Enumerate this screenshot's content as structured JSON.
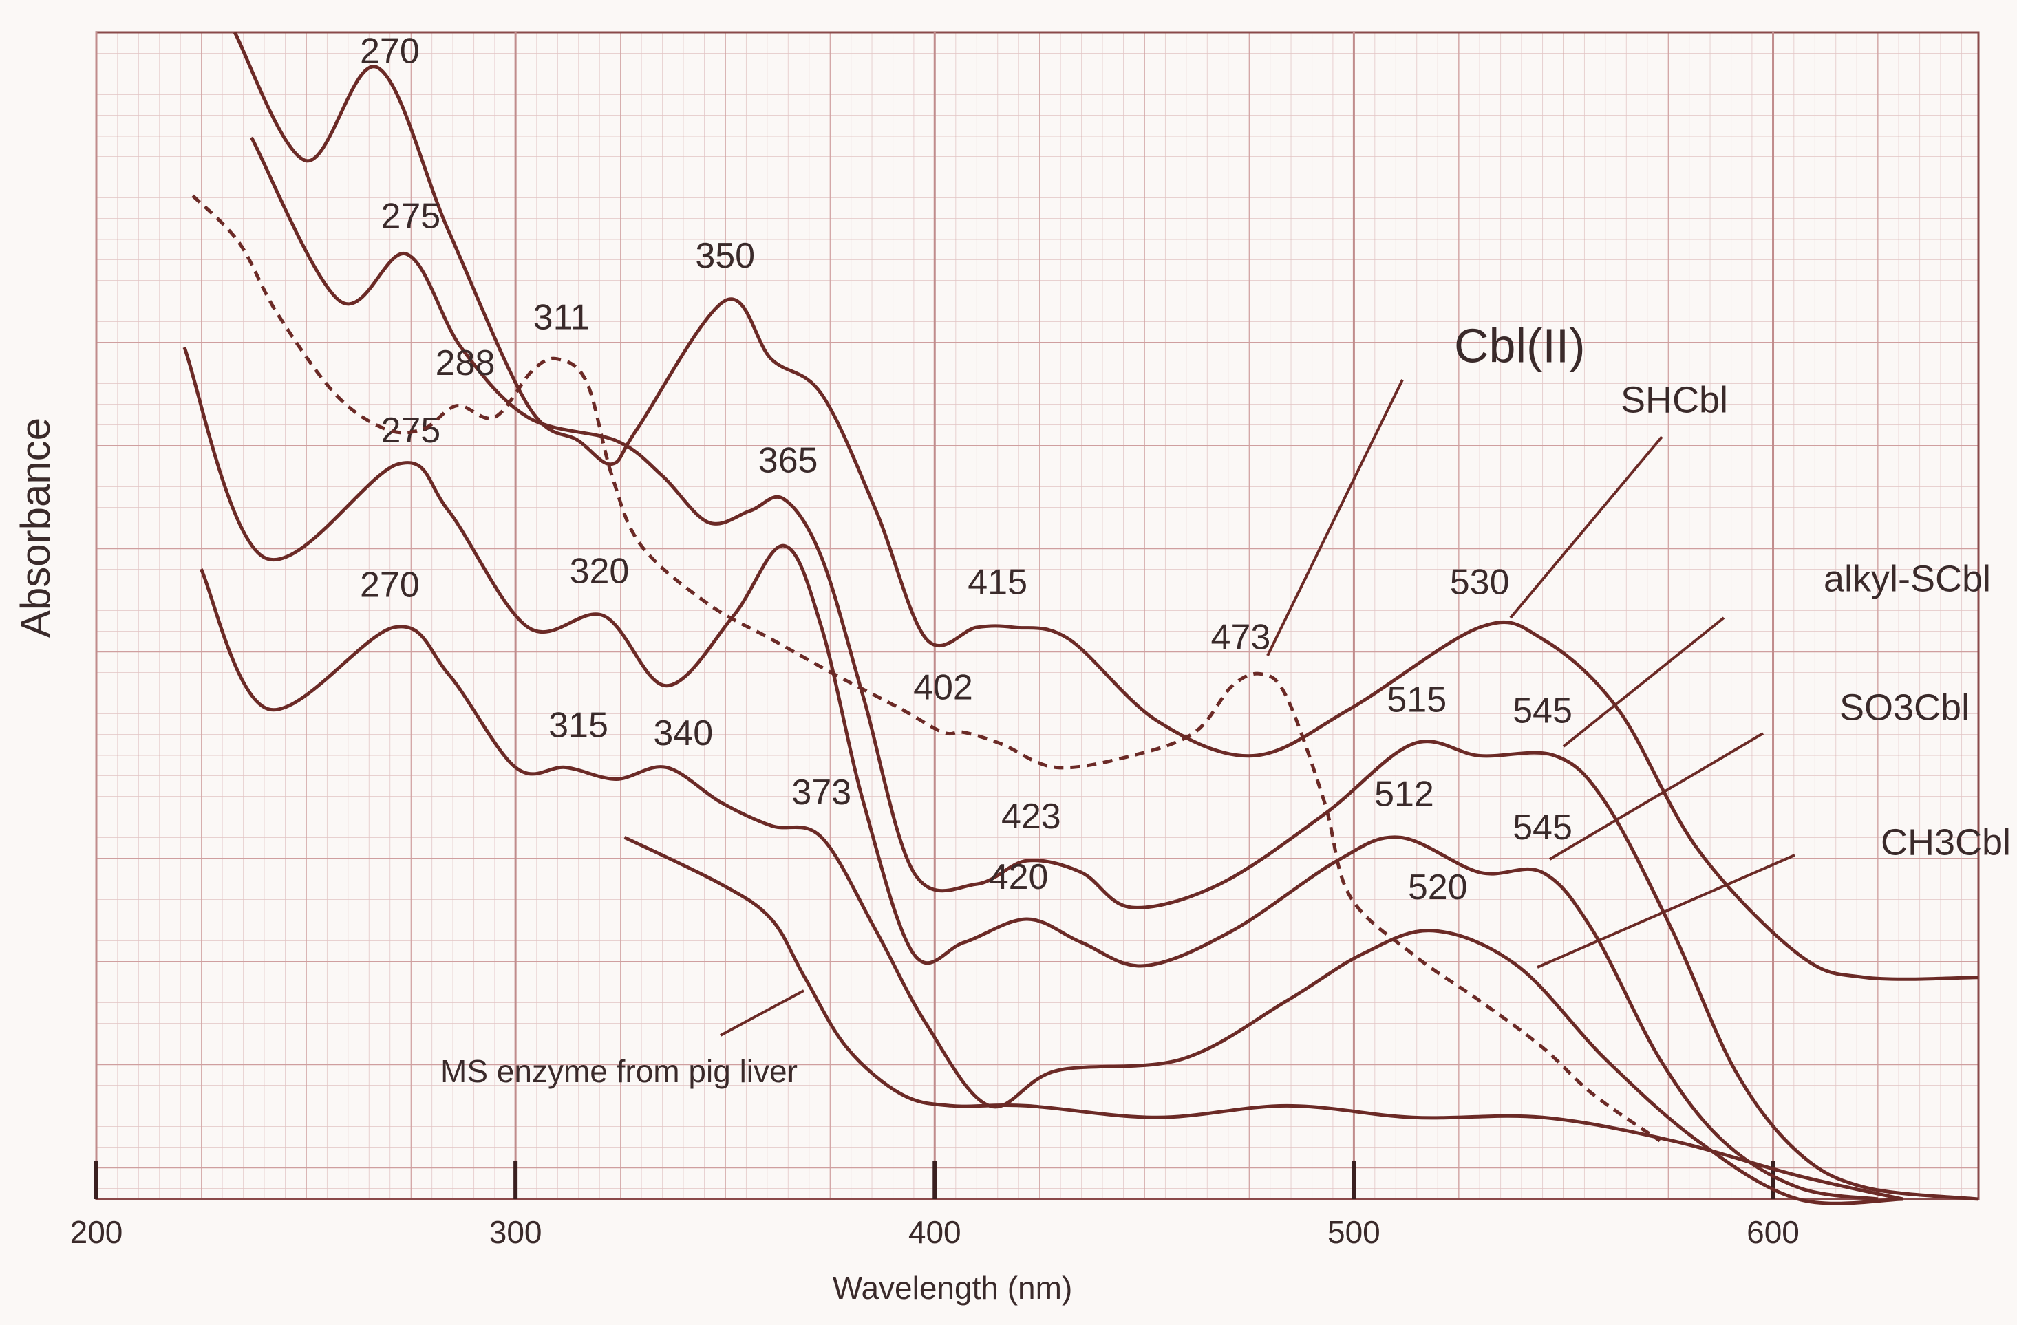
{
  "chart_data": {
    "type": "line",
    "x_label": "Wavelength (nm)",
    "y_label": "Absorbance",
    "xlim": [
      200,
      649
    ],
    "ylim": [
      0,
      1
    ],
    "xticks": [
      200,
      300,
      400,
      500,
      600
    ],
    "grid": true,
    "series": [
      {
        "name": "SHCbl",
        "color": "#6b2a26",
        "style": "solid",
        "peaks": [
          270,
          350,
          415,
          530
        ],
        "x": [
          233,
          250,
          267,
          284,
          303,
          315,
          323,
          329,
          350,
          361,
          373,
          386,
          398,
          410,
          419,
          432,
          453,
          476,
          499,
          530,
          545,
          563,
          582,
          606,
          622,
          649
        ],
        "values": [
          1.0,
          0.89,
          0.97,
          0.83,
          0.68,
          0.65,
          0.63,
          0.66,
          0.77,
          0.72,
          0.69,
          0.59,
          0.48,
          0.49,
          0.49,
          0.48,
          0.41,
          0.38,
          0.42,
          0.49,
          0.48,
          0.42,
          0.3,
          0.21,
          0.19,
          0.19
        ]
      },
      {
        "name": "alkyl-SCbl",
        "color": "#6b2a26",
        "style": "solid",
        "peaks": [
          275,
          365,
          423,
          515,
          545
        ],
        "x": [
          237,
          258,
          274,
          287,
          303,
          324,
          335,
          346,
          356,
          364,
          373,
          383,
          395,
          410,
          422,
          435,
          447,
          468,
          493,
          514,
          530,
          548,
          560,
          576,
          591,
          606,
          622,
          649
        ],
        "values": [
          0.91,
          0.77,
          0.81,
          0.73,
          0.67,
          0.65,
          0.62,
          0.58,
          0.59,
          0.6,
          0.55,
          0.43,
          0.28,
          0.27,
          0.29,
          0.28,
          0.25,
          0.27,
          0.33,
          0.39,
          0.38,
          0.38,
          0.34,
          0.23,
          0.11,
          0.04,
          0.01,
          0
        ]
      },
      {
        "name": "SO3Cbl",
        "color": "#6b2a26",
        "style": "solid",
        "peaks": [
          275,
          320,
          420,
          512,
          545
        ],
        "x": [
          221,
          240,
          272,
          284,
          303,
          321,
          336,
          352,
          364,
          373,
          383,
          395,
          407,
          422,
          435,
          450,
          471,
          496,
          511,
          530,
          545,
          557,
          573,
          588,
          606,
          625
        ],
        "values": [
          0.73,
          0.55,
          0.63,
          0.59,
          0.49,
          0.5,
          0.44,
          0.5,
          0.56,
          0.49,
          0.34,
          0.21,
          0.22,
          0.24,
          0.22,
          0.2,
          0.23,
          0.29,
          0.31,
          0.28,
          0.28,
          0.23,
          0.12,
          0.05,
          0.01,
          0
        ]
      },
      {
        "name": "CH3Cbl",
        "color": "#6b2a26",
        "style": "solid",
        "peaks": [
          270,
          315,
          340,
          373,
          520
        ],
        "x": [
          225,
          241,
          271,
          284,
          300,
          312,
          324,
          336,
          349,
          361,
          373,
          386,
          398,
          413,
          429,
          459,
          484,
          502,
          519,
          539,
          560,
          582,
          606,
          631
        ],
        "values": [
          0.54,
          0.42,
          0.49,
          0.45,
          0.37,
          0.37,
          0.36,
          0.37,
          0.34,
          0.32,
          0.31,
          0.23,
          0.15,
          0.08,
          0.11,
          0.12,
          0.17,
          0.21,
          0.23,
          0.2,
          0.12,
          0.05,
          0,
          0
        ]
      },
      {
        "name": "MS enzyme from pig liver",
        "color": "#6b2a26",
        "style": "solid",
        "x": [
          326,
          349,
          361,
          369,
          379,
          392,
          404,
          422,
          453,
          484,
          514,
          545,
          576,
          606,
          631
        ],
        "values": [
          0.31,
          0.27,
          0.24,
          0.19,
          0.13,
          0.09,
          0.08,
          0.08,
          0.07,
          0.08,
          0.07,
          0.07,
          0.05,
          0.02,
          0
        ]
      },
      {
        "name": "Cbl(II)",
        "color": "#6b2a26",
        "style": "dashed",
        "peaks": [
          288,
          311,
          402,
          473
        ],
        "x": [
          223,
          234,
          243,
          257,
          269,
          278,
          286,
          295,
          304,
          310,
          317,
          323,
          330,
          346,
          361,
          376,
          392,
          402,
          407,
          416,
          429,
          447,
          462,
          471,
          478,
          484,
          493,
          499,
          514,
          530,
          545,
          557,
          573
        ],
        "values": [
          0.86,
          0.82,
          0.76,
          0.69,
          0.66,
          0.66,
          0.68,
          0.67,
          0.71,
          0.72,
          0.7,
          0.62,
          0.56,
          0.51,
          0.48,
          0.45,
          0.42,
          0.4,
          0.4,
          0.39,
          0.37,
          0.38,
          0.4,
          0.44,
          0.45,
          0.43,
          0.34,
          0.26,
          0.21,
          0.17,
          0.13,
          0.09,
          0.05
        ]
      }
    ]
  }
}
